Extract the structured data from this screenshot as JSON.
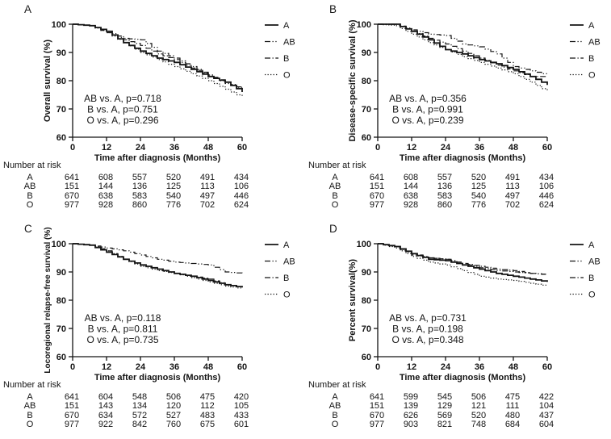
{
  "figure": {
    "background": "#ffffff",
    "line_color": "#141414",
    "panel_letters": [
      "A",
      "B",
      "C",
      "D"
    ]
  },
  "chart_data": [
    {
      "panel": "A",
      "type": "line",
      "chart_kind": "kaplan-meier-survival",
      "title": "",
      "xlabel": "Time after diagnosis (Months)",
      "ylabel": "Overall survival (%)",
      "xlim": [
        0,
        60
      ],
      "ylim": [
        60,
        100
      ],
      "xticks": [
        0,
        12,
        24,
        36,
        48,
        60
      ],
      "yticks": [
        60,
        70,
        80,
        90,
        100
      ],
      "grid": false,
      "legend_position": "right-outside",
      "x": [
        0,
        6,
        12,
        18,
        24,
        30,
        36,
        42,
        48,
        54,
        60
      ],
      "series": [
        {
          "name": "A",
          "line_style": "solid",
          "values": [
            100,
            99.5,
            97.5,
            93.5,
            90.5,
            88,
            86.5,
            84,
            81.5,
            79.5,
            76
          ]
        },
        {
          "name": "AB",
          "line_style": "dash-dot-dot",
          "values": [
            100,
            99.5,
            97.5,
            95,
            94.5,
            90.5,
            88,
            85,
            82,
            79,
            77
          ]
        },
        {
          "name": "B",
          "line_style": "dash-dot",
          "values": [
            100,
            99.5,
            97,
            94.5,
            92.5,
            89.5,
            87.5,
            84.5,
            82,
            79.5,
            77
          ]
        },
        {
          "name": "O",
          "line_style": "dotted",
          "values": [
            100,
            99.5,
            97,
            93.5,
            90,
            87.5,
            85,
            82.5,
            80,
            77,
            74
          ]
        }
      ],
      "annotations": [
        "AB vs. A, p=0.718",
        "B vs. A, p=0.751",
        "O vs. A, p=0.296"
      ],
      "number_at_risk": {
        "label": "Number at risk",
        "timepoints": [
          0,
          12,
          24,
          36,
          48,
          60
        ],
        "rows": [
          {
            "group": "A",
            "values": [
              641,
              608,
              557,
              520,
              491,
              434
            ]
          },
          {
            "group": "AB",
            "values": [
              151,
              144,
              136,
              125,
              113,
              106
            ]
          },
          {
            "group": "B",
            "values": [
              670,
              638,
              583,
              540,
              497,
              446
            ]
          },
          {
            "group": "O",
            "values": [
              977,
              928,
              860,
              776,
              702,
              624
            ]
          }
        ]
      }
    },
    {
      "panel": "B",
      "type": "line",
      "chart_kind": "kaplan-meier-survival",
      "title": "",
      "xlabel": "Time after diagnosis (Months)",
      "ylabel": "Disease-specific survival (%)",
      "xlim": [
        0,
        60
      ],
      "ylim": [
        60,
        100
      ],
      "xticks": [
        0,
        12,
        24,
        36,
        48,
        60
      ],
      "yticks": [
        60,
        70,
        80,
        90,
        100
      ],
      "grid": false,
      "legend_position": "right-outside",
      "x": [
        0,
        6,
        12,
        18,
        24,
        30,
        36,
        42,
        48,
        54,
        60
      ],
      "series": [
        {
          "name": "A",
          "line_style": "solid",
          "values": [
            100,
            100,
            97.5,
            94.5,
            91,
            89.5,
            87.5,
            86,
            84,
            81.5,
            78.5
          ]
        },
        {
          "name": "AB",
          "line_style": "dash-dot-dot",
          "values": [
            100,
            100,
            98,
            96.5,
            96,
            93,
            92,
            89.5,
            85,
            83.5,
            82
          ]
        },
        {
          "name": "B",
          "line_style": "dash-dot",
          "values": [
            100,
            100,
            97.5,
            95,
            93,
            90.5,
            88,
            85.5,
            83.5,
            81.5,
            81.5
          ]
        },
        {
          "name": "O",
          "line_style": "dotted",
          "values": [
            100,
            99.5,
            96.5,
            93.5,
            91,
            88.5,
            86.5,
            84.5,
            82.5,
            79.5,
            76
          ]
        }
      ],
      "annotations": [
        "AB vs. A, p=0.356",
        "B vs. A, p=0.991",
        "O vs. A, p=0.239"
      ],
      "number_at_risk": {
        "label": "Number at risk",
        "timepoints": [
          0,
          12,
          24,
          36,
          48,
          60
        ],
        "rows": [
          {
            "group": "A",
            "values": [
              641,
              608,
              557,
              520,
              491,
              434
            ]
          },
          {
            "group": "AB",
            "values": [
              151,
              144,
              136,
              125,
              113,
              106
            ]
          },
          {
            "group": "B",
            "values": [
              670,
              638,
              583,
              540,
              497,
              446
            ]
          },
          {
            "group": "O",
            "values": [
              977,
              928,
              860,
              776,
              702,
              624
            ]
          }
        ]
      }
    },
    {
      "panel": "C",
      "type": "line",
      "chart_kind": "kaplan-meier-survival",
      "title": "",
      "xlabel": "Time after diagnosis (Months)",
      "ylabel": "Locoregional relapse-free survival (%)",
      "xlim": [
        0,
        60
      ],
      "ylim": [
        60,
        100
      ],
      "xticks": [
        0,
        12,
        24,
        36,
        48,
        60
      ],
      "yticks": [
        60,
        70,
        80,
        90,
        100
      ],
      "grid": false,
      "legend_position": "right-outside",
      "x": [
        0,
        6,
        12,
        18,
        24,
        30,
        36,
        42,
        48,
        54,
        60
      ],
      "series": [
        {
          "name": "A",
          "line_style": "solid",
          "values": [
            100,
            99.5,
            97,
            94.5,
            92.5,
            91,
            89.5,
            88.5,
            87,
            85.5,
            84.5
          ]
        },
        {
          "name": "AB",
          "line_style": "dash-dot-dot",
          "values": [
            100,
            99.5,
            98.5,
            97.5,
            96,
            94.5,
            93.5,
            93,
            92.5,
            90,
            89.5
          ]
        },
        {
          "name": "B",
          "line_style": "dash-dot",
          "values": [
            100,
            99.5,
            97.5,
            94.5,
            92.5,
            91,
            89.5,
            88.5,
            87.5,
            85.5,
            84.5
          ]
        },
        {
          "name": "O",
          "line_style": "dotted",
          "values": [
            100,
            99.5,
            97.5,
            94.5,
            92,
            90.5,
            89.5,
            88,
            86.5,
            85,
            84
          ]
        }
      ],
      "annotations": [
        "AB vs. A, p=0.118",
        "B vs. A, p=0.811",
        "O vs. A, p=0.735"
      ],
      "number_at_risk": {
        "label": "Number at risk",
        "timepoints": [
          0,
          12,
          24,
          36,
          48,
          60
        ],
        "rows": [
          {
            "group": "A",
            "values": [
              641,
              604,
              548,
              506,
              475,
              420
            ]
          },
          {
            "group": "AB",
            "values": [
              151,
              143,
              134,
              120,
              112,
              105
            ]
          },
          {
            "group": "B",
            "values": [
              670,
              634,
              572,
              527,
              483,
              433
            ]
          },
          {
            "group": "O",
            "values": [
              977,
              922,
              842,
              760,
              675,
              601
            ]
          }
        ]
      }
    },
    {
      "panel": "D",
      "type": "line",
      "chart_kind": "kaplan-meier-survival",
      "title": "",
      "xlabel": "Time after diagnosis (Months)",
      "ylabel": "Percent survival(%)",
      "xlim": [
        0,
        60
      ],
      "ylim": [
        60,
        100
      ],
      "xticks": [
        0,
        12,
        24,
        36,
        48,
        60
      ],
      "yticks": [
        60,
        70,
        80,
        90,
        100
      ],
      "grid": false,
      "legend_position": "right-outside",
      "x": [
        0,
        6,
        12,
        18,
        24,
        30,
        36,
        42,
        48,
        54,
        60
      ],
      "series": [
        {
          "name": "A",
          "line_style": "solid",
          "values": [
            100,
            99,
            96.5,
            94.5,
            94,
            92.5,
            91,
            89.5,
            88.5,
            87.5,
            86.5
          ]
        },
        {
          "name": "AB",
          "line_style": "dash-dot-dot",
          "values": [
            100,
            99,
            96,
            95,
            94.5,
            93,
            91.5,
            90.5,
            90,
            89.5,
            89
          ]
        },
        {
          "name": "B",
          "line_style": "dash-dot",
          "values": [
            100,
            99,
            96.5,
            95,
            94.5,
            93,
            92,
            91,
            90.5,
            89.5,
            89
          ]
        },
        {
          "name": "O",
          "line_style": "dotted",
          "values": [
            100,
            98.5,
            95.5,
            93.5,
            92.5,
            90.5,
            88.5,
            87.5,
            87,
            86,
            85
          ]
        }
      ],
      "annotations": [
        "AB vs. A, p=0.731",
        "B vs. A, p=0.198",
        "O vs. A, p=0.348"
      ],
      "number_at_risk": {
        "label": "Number at risk",
        "timepoints": [
          0,
          12,
          24,
          36,
          48,
          60
        ],
        "rows": [
          {
            "group": "A",
            "values": [
              641,
              599,
              545,
              506,
              475,
              422
            ]
          },
          {
            "group": "AB",
            "values": [
              151,
              139,
              129,
              121,
              111,
              104
            ]
          },
          {
            "group": "B",
            "values": [
              670,
              626,
              569,
              520,
              480,
              437
            ]
          },
          {
            "group": "O",
            "values": [
              977,
              903,
              821,
              748,
              684,
              604
            ]
          }
        ]
      }
    }
  ]
}
